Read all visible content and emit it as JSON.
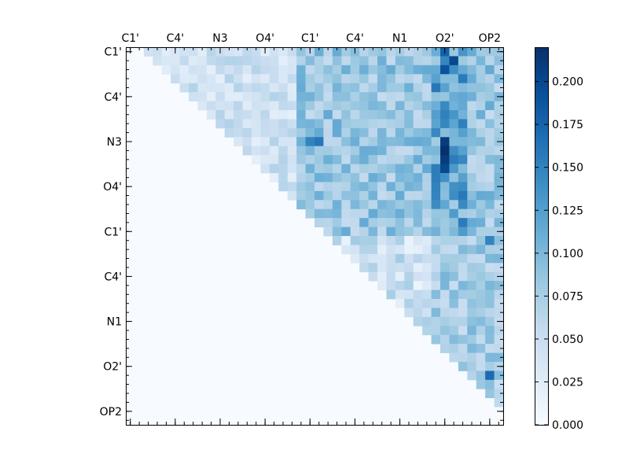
{
  "chart_data": {
    "type": "heatmap",
    "title": "",
    "xlabel": "",
    "ylabel": "",
    "x_tick_labels": [
      "C1'",
      "C4'",
      "N3",
      "O4'",
      "C1'",
      "C4'",
      "N1",
      "O2'",
      "OP2"
    ],
    "y_tick_labels": [
      "C1'",
      "C4'",
      "N3",
      "O4'",
      "C1'",
      "C4'",
      "N1",
      "O2'",
      "OP2"
    ],
    "x_tick_positions": [
      0.5,
      5.5,
      10.5,
      15.5,
      20.5,
      25.5,
      30.5,
      35.5,
      40.5
    ],
    "y_tick_positions": [
      0.5,
      5.5,
      10.5,
      15.5,
      20.5,
      25.5,
      30.5,
      35.5,
      40.5
    ],
    "n_rows": 42,
    "n_cols": 42,
    "colormap": "Blues",
    "colorbar": {
      "min": 0.0,
      "max": 0.22,
      "ticks": [
        0.0,
        0.025,
        0.05,
        0.075,
        0.1,
        0.125,
        0.15,
        0.175,
        0.2
      ],
      "tick_labels": [
        "0.000",
        "0.025",
        "0.050",
        "0.075",
        "0.100",
        "0.125",
        "0.150",
        "0.175",
        "0.200"
      ]
    },
    "note_rows": "values are upper-triangular (row index <= column index); cells not listed are 0",
    "regions": [
      {
        "rows": [
          0,
          20
        ],
        "cols": [
          19,
          41
        ],
        "value": 0.1
      },
      {
        "rows": [
          20,
          41
        ],
        "cols": [
          34,
          41
        ],
        "value": 0.09
      },
      {
        "rows": [
          0,
          20
        ],
        "cols": [
          34,
          37
        ],
        "value": 0.14
      }
    ],
    "highlights": [
      {
        "row": 0,
        "col": 35,
        "value": 0.18
      },
      {
        "row": 1,
        "col": 36,
        "value": 0.2
      },
      {
        "row": 2,
        "col": 35,
        "value": 0.19
      },
      {
        "row": 10,
        "col": 35,
        "value": 0.21
      },
      {
        "row": 11,
        "col": 35,
        "value": 0.22
      },
      {
        "row": 12,
        "col": 35,
        "value": 0.21
      },
      {
        "row": 13,
        "col": 35,
        "value": 0.2
      },
      {
        "row": 10,
        "col": 20,
        "value": 0.15
      },
      {
        "row": 10,
        "col": 21,
        "value": 0.16
      },
      {
        "row": 36,
        "col": 40,
        "value": 0.17
      },
      {
        "row": 21,
        "col": 40,
        "value": 0.15
      }
    ]
  }
}
